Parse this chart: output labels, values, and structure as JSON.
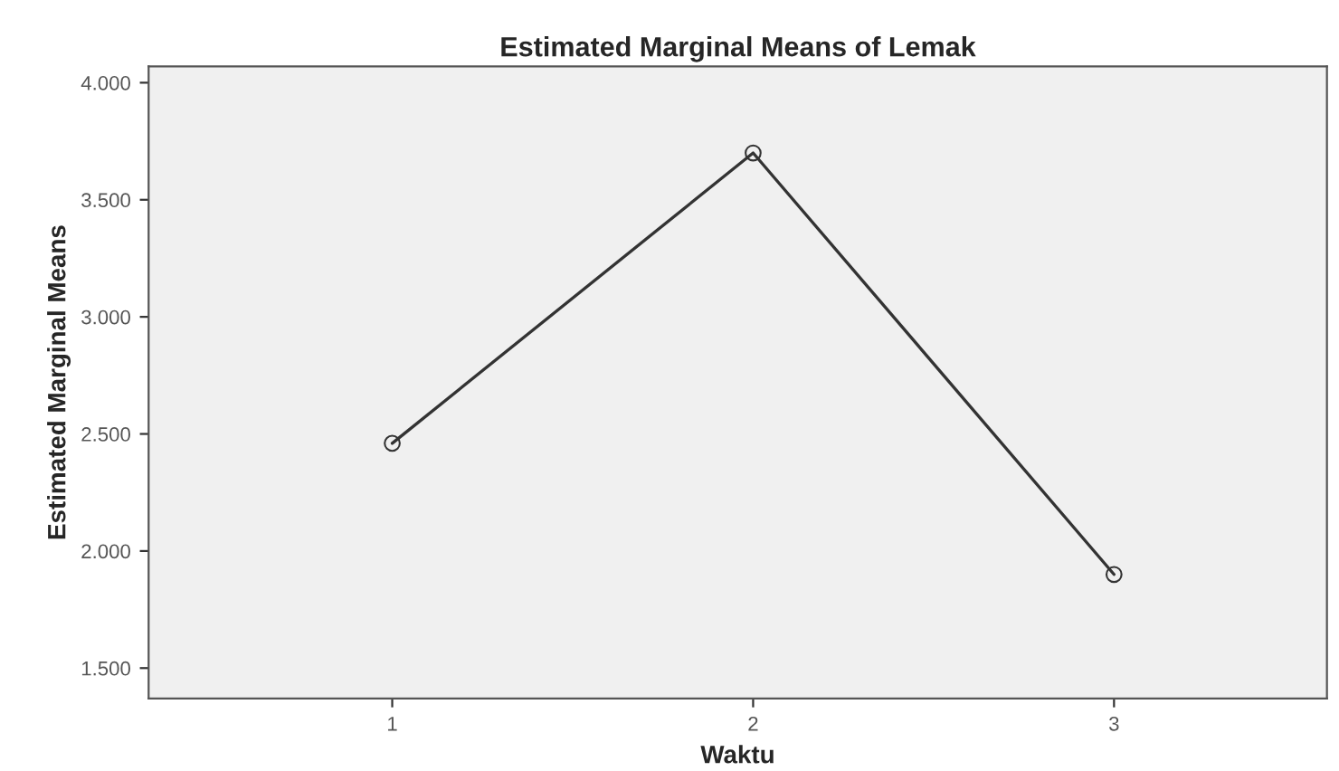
{
  "chart_data": {
    "type": "line",
    "title": "Estimated Marginal Means of Lemak",
    "xlabel": "Waktu",
    "ylabel": "Estimated Marginal Means",
    "categories": [
      "1",
      "2",
      "3"
    ],
    "series": [
      {
        "color": "#333333",
        "values": [
          2.46,
          3.7,
          1.9
        ]
      }
    ],
    "ylim": [
      1.37,
      4.07
    ],
    "yticks": [
      {
        "value": 1.5,
        "label": "1.500"
      },
      {
        "value": 2.0,
        "label": "2.000"
      },
      {
        "value": 2.5,
        "label": "2.500"
      },
      {
        "value": 3.0,
        "label": "3.000"
      },
      {
        "value": 3.5,
        "label": "3.500"
      },
      {
        "value": 4.0,
        "label": "4.000"
      }
    ],
    "grid": false,
    "legend": false,
    "marker": "circle",
    "line_style": "solid"
  }
}
